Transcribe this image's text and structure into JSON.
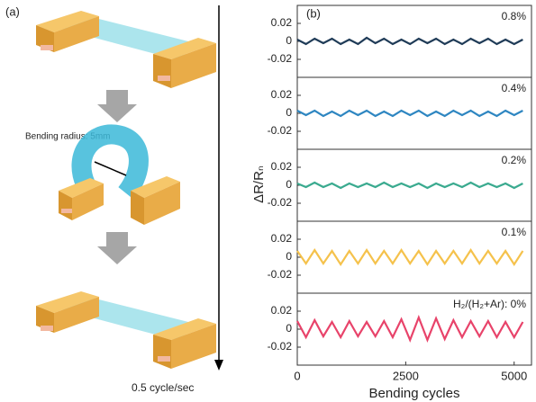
{
  "panel_a": {
    "label": "(a)",
    "annotation": "Bending radius: 5mm",
    "rate": "0.5 cycle/sec"
  },
  "panel_b": {
    "label": "(b)",
    "ylabel": "ΔR/Rₙ",
    "xlabel": "Bending cycles"
  },
  "chart_data": [
    {
      "type": "line",
      "annotation": "0.8%",
      "color": "#1f3b57",
      "xlim": [
        0,
        5400
      ],
      "ylim": [
        -0.04,
        0.04
      ],
      "yticks": [
        -0.02,
        0,
        0.02
      ],
      "x": [
        0,
        200,
        400,
        600,
        800,
        1000,
        1200,
        1400,
        1600,
        1800,
        2000,
        2200,
        2400,
        2600,
        2800,
        3000,
        3200,
        3400,
        3600,
        3800,
        4000,
        4200,
        4400,
        4600,
        4800,
        5000,
        5200
      ],
      "values": [
        0.002,
        -0.003,
        0.003,
        -0.002,
        0.003,
        -0.003,
        0.002,
        -0.003,
        0.004,
        -0.002,
        0.003,
        -0.003,
        0.002,
        -0.003,
        0.003,
        -0.002,
        0.003,
        -0.003,
        0.002,
        -0.003,
        0.003,
        -0.002,
        0.003,
        -0.003,
        0.002,
        -0.003,
        0.002
      ]
    },
    {
      "type": "line",
      "annotation": "0.4%",
      "color": "#2e86c1",
      "xlim": [
        0,
        5400
      ],
      "ylim": [
        -0.04,
        0.04
      ],
      "yticks": [
        -0.02,
        0,
        0.02
      ],
      "x": [
        0,
        200,
        400,
        600,
        800,
        1000,
        1200,
        1400,
        1600,
        1800,
        2000,
        2200,
        2400,
        2600,
        2800,
        3000,
        3200,
        3400,
        3600,
        3800,
        4000,
        4200,
        4400,
        4600,
        4800,
        5000,
        5200
      ],
      "values": [
        0.003,
        -0.002,
        0.003,
        -0.003,
        0.002,
        -0.003,
        0.003,
        -0.002,
        0.003,
        -0.003,
        0.002,
        -0.003,
        0.003,
        -0.002,
        0.003,
        -0.003,
        0.002,
        -0.003,
        0.003,
        -0.002,
        0.003,
        -0.003,
        0.002,
        -0.003,
        0.003,
        -0.002,
        0.003
      ]
    },
    {
      "type": "line",
      "annotation": "0.2%",
      "color": "#3aaa8f",
      "xlim": [
        0,
        5400
      ],
      "ylim": [
        -0.04,
        0.04
      ],
      "yticks": [
        -0.02,
        0,
        0.02
      ],
      "x": [
        0,
        200,
        400,
        600,
        800,
        1000,
        1200,
        1400,
        1600,
        1800,
        2000,
        2200,
        2400,
        2600,
        2800,
        3000,
        3200,
        3400,
        3600,
        3800,
        4000,
        4200,
        4400,
        4600,
        4800,
        5000,
        5200
      ],
      "values": [
        0.002,
        -0.002,
        0.003,
        -0.002,
        0.002,
        -0.003,
        0.002,
        -0.002,
        0.002,
        -0.002,
        0.003,
        -0.002,
        0.002,
        -0.002,
        0.002,
        -0.003,
        0.002,
        -0.002,
        0.002,
        -0.002,
        0.003,
        -0.002,
        0.002,
        -0.002,
        0.002,
        -0.003,
        0.002
      ]
    },
    {
      "type": "line",
      "annotation": "0.1%",
      "color": "#f5c24c",
      "xlim": [
        0,
        5400
      ],
      "ylim": [
        -0.04,
        0.04
      ],
      "yticks": [
        -0.02,
        0,
        0.02
      ],
      "x": [
        0,
        200,
        400,
        600,
        800,
        1000,
        1200,
        1400,
        1600,
        1800,
        2000,
        2200,
        2400,
        2600,
        2800,
        3000,
        3200,
        3400,
        3600,
        3800,
        4000,
        4200,
        4400,
        4600,
        4800,
        5000,
        5200
      ],
      "values": [
        0.007,
        -0.007,
        0.008,
        -0.007,
        0.007,
        -0.008,
        0.007,
        -0.007,
        0.008,
        -0.007,
        0.007,
        -0.007,
        0.008,
        -0.007,
        0.007,
        -0.008,
        0.007,
        -0.007,
        0.007,
        -0.007,
        0.008,
        -0.007,
        0.007,
        -0.007,
        0.007,
        -0.008,
        0.007
      ]
    },
    {
      "type": "line",
      "annotation": "H₂/(H₂+Ar): 0%",
      "color": "#e8436a",
      "xlim": [
        0,
        5400
      ],
      "ylim": [
        -0.04,
        0.04
      ],
      "yticks": [
        -0.02,
        0,
        0.02
      ],
      "x": [
        0,
        200,
        400,
        600,
        800,
        1000,
        1200,
        1400,
        1600,
        1800,
        2000,
        2200,
        2400,
        2600,
        2800,
        3000,
        3200,
        3400,
        3600,
        3800,
        4000,
        4200,
        4400,
        4600,
        4800,
        5000,
        5200
      ],
      "values": [
        0.009,
        -0.009,
        0.01,
        -0.008,
        0.008,
        -0.009,
        0.009,
        -0.008,
        0.008,
        -0.008,
        0.009,
        -0.009,
        0.011,
        -0.012,
        0.013,
        -0.012,
        0.012,
        -0.011,
        0.01,
        -0.009,
        0.009,
        -0.008,
        0.009,
        -0.009,
        0.008,
        -0.009,
        0.008
      ],
      "xticks": [
        0,
        2500,
        5000
      ]
    }
  ]
}
